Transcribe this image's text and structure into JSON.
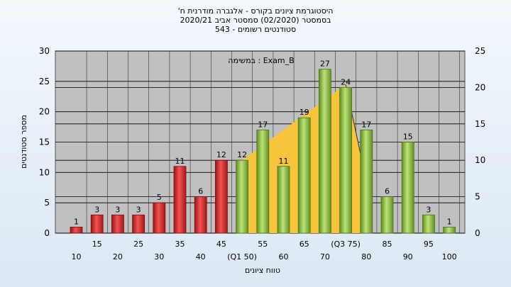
{
  "chart_data": {
    "type": "bar",
    "title": "'היסטוגרמת ציונים בקורס - אלגברה מודרנית ח",
    "subtitle_lines": [
      "בסמסטר  (02/2020)  סמסטר אביב 2020/21",
      "543 - סטודנטים רשומים"
    ],
    "xlabel": "טווח ציונים",
    "ylabel": "מספר סטודנטים",
    "legend_text": "במשימה : Exam_B",
    "categories": [
      "10",
      "15",
      "20",
      "25",
      "30",
      "35",
      "40",
      "45",
      "50",
      "55",
      "60",
      "65",
      "70",
      "75",
      "80",
      "85",
      "90",
      "95",
      "100"
    ],
    "x_tick_labels": [
      "10",
      "15",
      "20",
      "25",
      "30",
      "35",
      "40",
      "45",
      "(Q1 50)",
      "55",
      "60",
      "65",
      "70",
      "(Q3 75)",
      "80",
      "85",
      "90",
      "95",
      "100"
    ],
    "values": [
      1,
      3,
      3,
      3,
      5,
      11,
      6,
      12,
      12,
      17,
      11,
      19,
      27,
      24,
      17,
      6,
      15,
      3,
      1
    ],
    "ylim": [
      0,
      30
    ],
    "y_ticks": [
      0,
      5,
      10,
      15,
      20,
      25,
      30
    ],
    "y2lim": [
      0,
      25
    ],
    "y2_ticks": [
      0,
      5,
      10,
      15,
      20,
      25
    ],
    "grid": true,
    "colors": {
      "low": "#e03030",
      "high": "#8cc63f",
      "area": "#f7c43c",
      "plot_bg": "#c0c0c0",
      "bar_text": "#000000"
    },
    "red_threshold_index": 8,
    "area_shape": {
      "x_start": "50",
      "x_peak": "75",
      "x_end": "80",
      "left_y": 12,
      "peak_y": 24.5,
      "end_y": 8.5
    }
  }
}
